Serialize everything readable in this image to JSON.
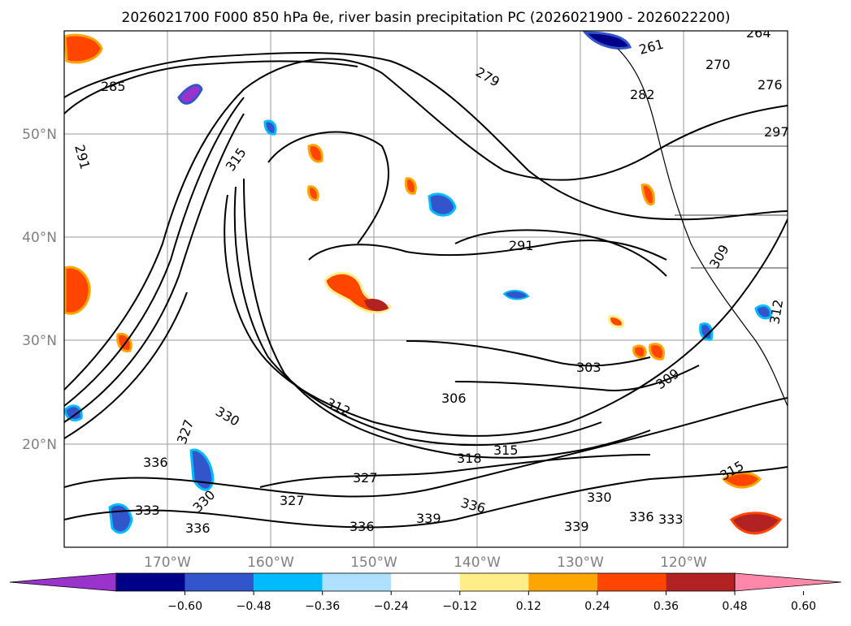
{
  "title": "2026021700 F000 850 hPa θe, river basin precipitation PC (2026021900 - 2026022200)",
  "map": {
    "region": "North Pacific",
    "lat_labels": [
      "50°N",
      "40°N",
      "30°N",
      "20°N"
    ],
    "lon_labels": [
      "170°W",
      "160°W",
      "150°W",
      "140°W",
      "130°W",
      "120°W"
    ],
    "lat_values": [
      50,
      40,
      30,
      20
    ],
    "lon_values": [
      -170,
      -160,
      -150,
      -140,
      -130,
      -120
    ],
    "lat_range": [
      10,
      60
    ],
    "lon_range": [
      -180,
      -110
    ],
    "contour_labels": [
      "285",
      "291",
      "279",
      "261",
      "264",
      "270",
      "276",
      "282",
      "297",
      "315",
      "291",
      "309",
      "312",
      "303",
      "309",
      "306",
      "312",
      "315",
      "318",
      "327",
      "330",
      "330",
      "327",
      "336",
      "336",
      "336",
      "333",
      "339",
      "339",
      "336",
      "330",
      "315",
      "327",
      "336",
      "333"
    ]
  },
  "colorbar": {
    "ticks": [
      "−0.60",
      "−0.48",
      "−0.36",
      "−0.24",
      "−0.12",
      "0.12",
      "0.24",
      "0.36",
      "0.48",
      "0.60"
    ],
    "colors": [
      "#9933cc",
      "#000088",
      "#3355cc",
      "#00bbff",
      "#b0e0ff",
      "#ffffff",
      "#ffee88",
      "#ffa500",
      "#ff4500",
      "#b22222",
      "#ff88aa"
    ]
  }
}
